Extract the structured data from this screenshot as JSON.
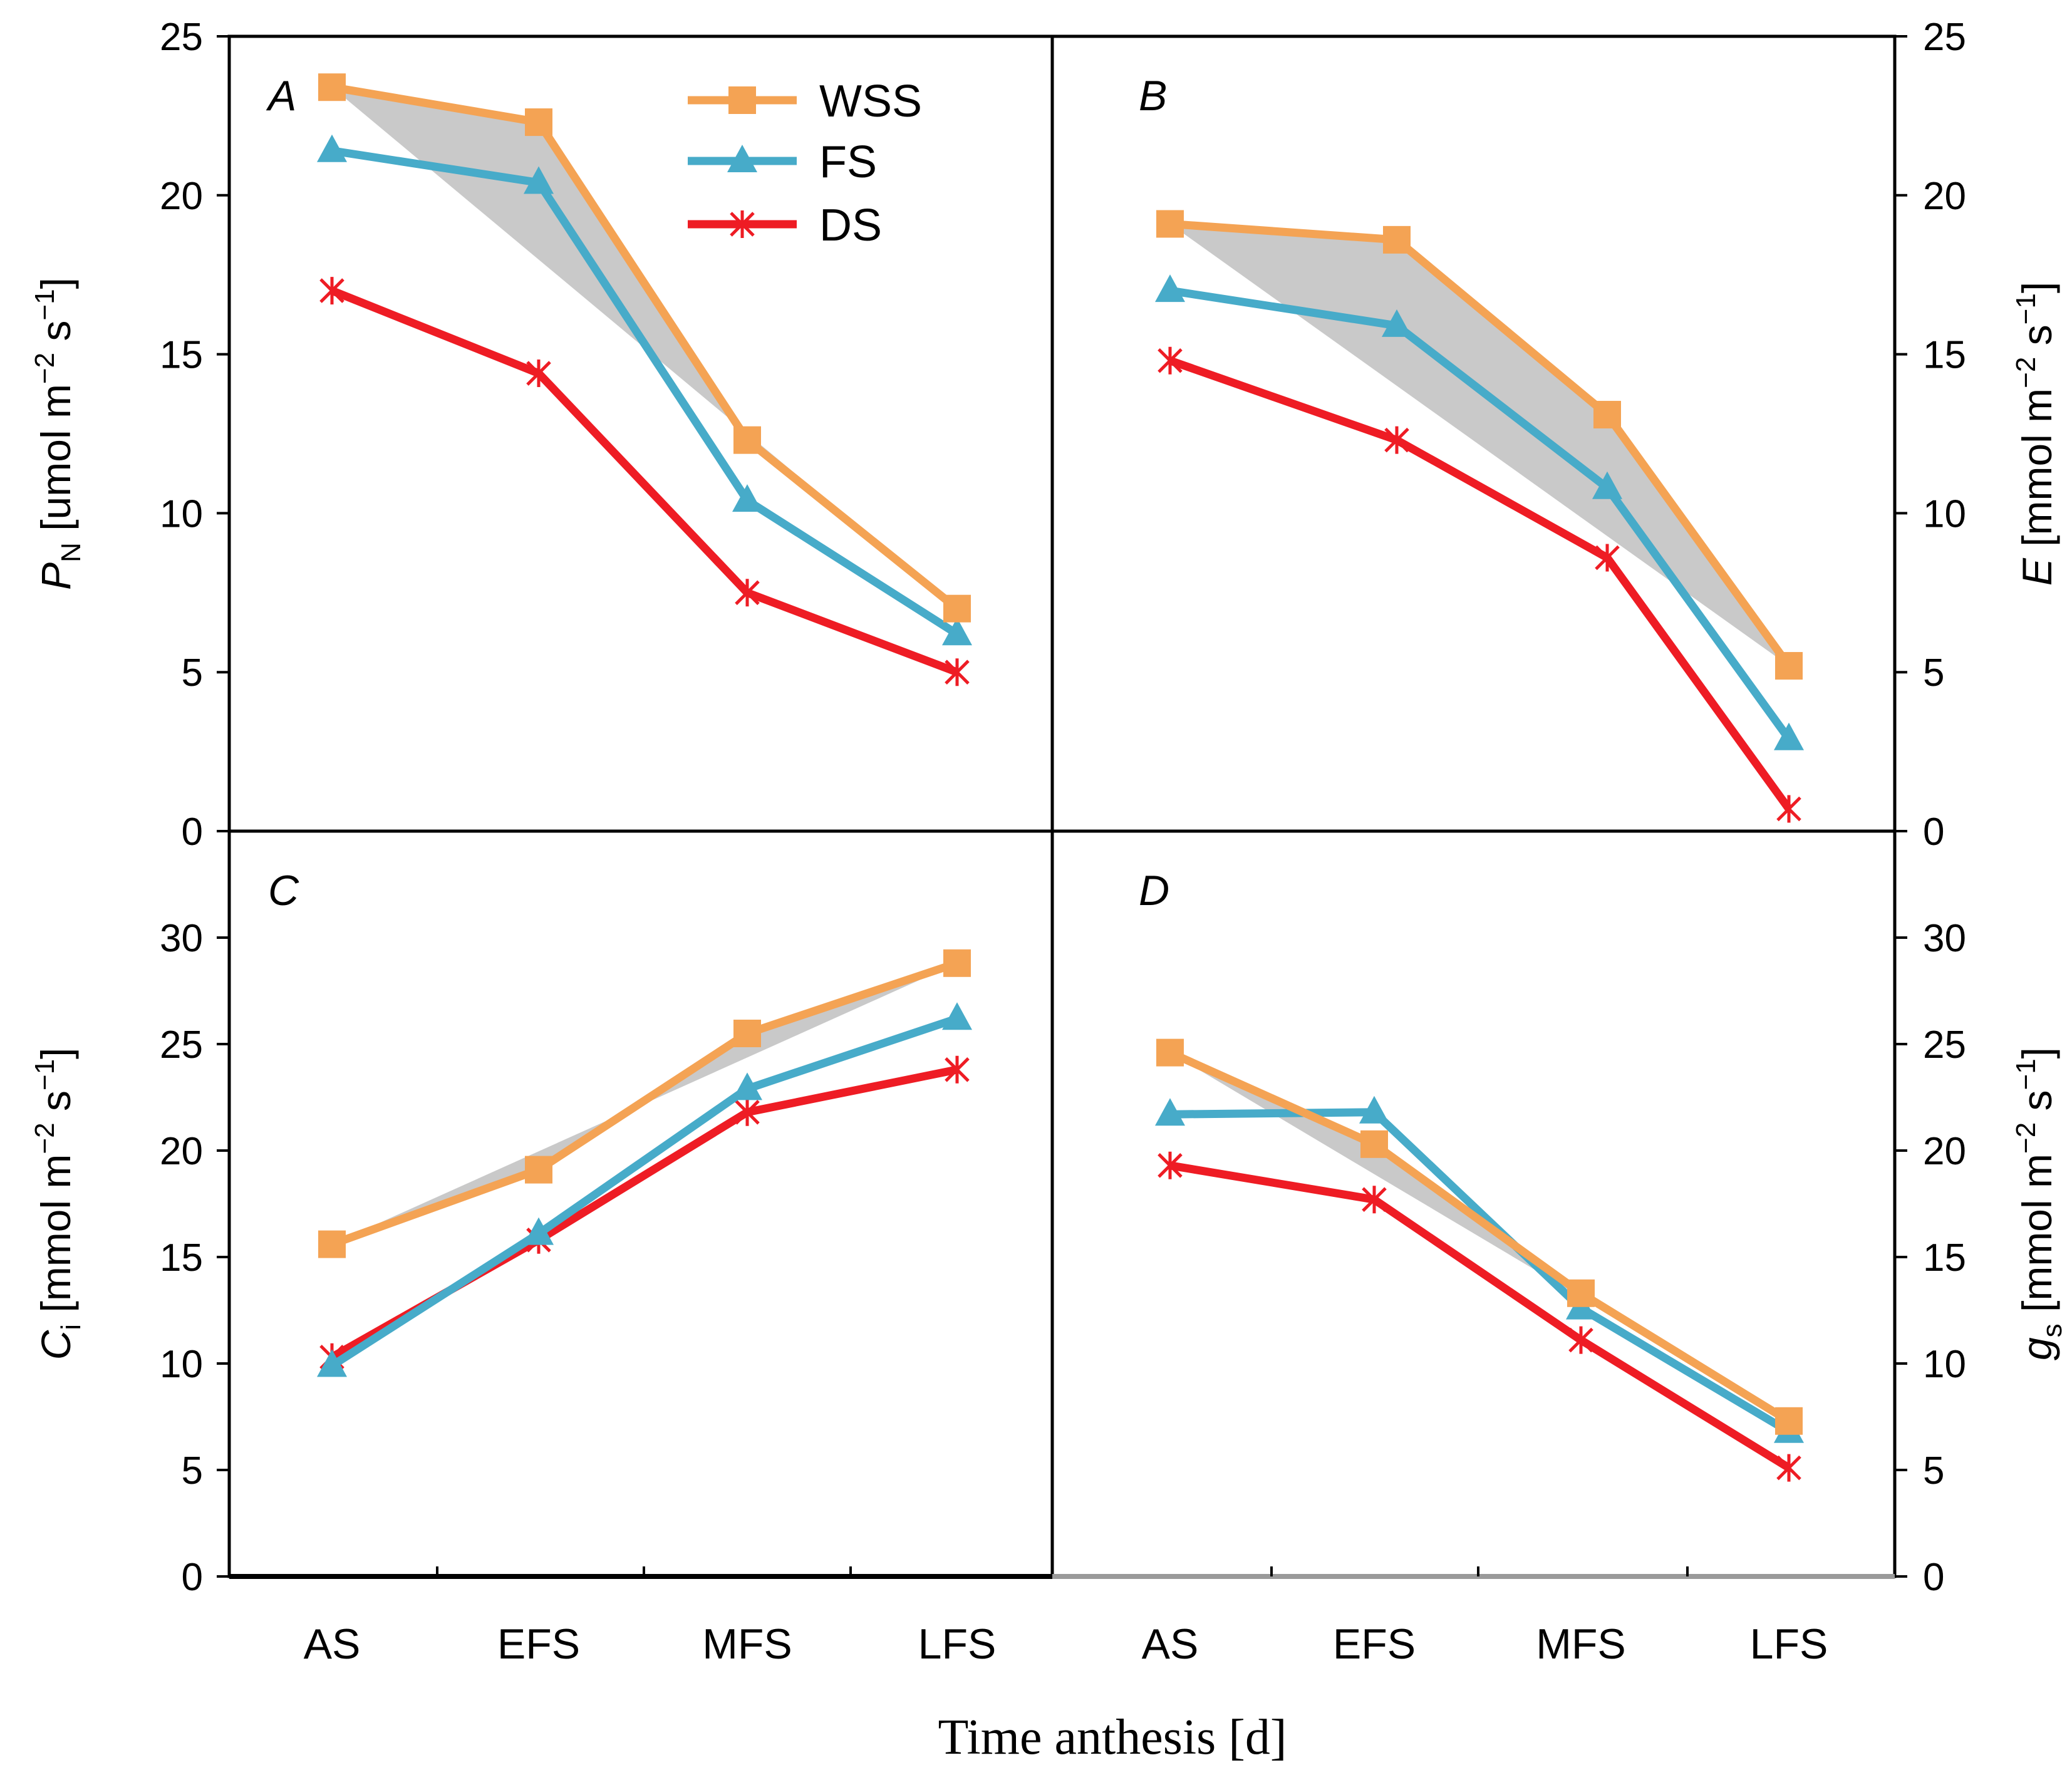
{
  "figure": {
    "x_title": "Time anthesis [d]",
    "categories": [
      "AS",
      "EFS",
      "MFS",
      "LFS"
    ],
    "legend": [
      {
        "name": "WSS",
        "marker": "square"
      },
      {
        "name": "FS",
        "marker": "triangle"
      },
      {
        "name": "DS",
        "marker": "star"
      }
    ],
    "colors": {
      "WSS": "#f4a354",
      "FS": "#47abc9",
      "DS": "#ee1c24",
      "band": "#c9c9c9",
      "frame": "#000000"
    }
  },
  "chart_data": [
    {
      "panel": "A",
      "type": "line",
      "categories": [
        "AS",
        "EFS",
        "MFS",
        "LFS"
      ],
      "ylabel": "P_N [umol m^-2 s^-1]",
      "ylabel_parts": {
        "symbol": "P",
        "sub": "N",
        "pre": "[umol m",
        "exp1": "−2",
        "mid": " s",
        "exp2": "−1",
        "post": "]"
      },
      "ylim": [
        0,
        25
      ],
      "yticks": [
        "0",
        "5",
        "10",
        "15",
        "20",
        "25"
      ],
      "axis_side": "left",
      "series": [
        {
          "name": "WSS",
          "values": [
            23.4,
            22.3,
            12.3,
            7.0
          ]
        },
        {
          "name": "FS",
          "values": [
            21.4,
            20.4,
            10.4,
            6.2
          ]
        },
        {
          "name": "DS",
          "values": [
            17.0,
            14.4,
            7.5,
            5.0
          ]
        }
      ]
    },
    {
      "panel": "B",
      "type": "line",
      "categories": [
        "AS",
        "EFS",
        "MFS",
        "LFS"
      ],
      "ylabel": "E [mmol m^-2 s^-1]",
      "ylabel_parts": {
        "symbol": "E",
        "sub": "",
        "pre": "[mmol m",
        "exp1": "−2",
        "mid": " s",
        "exp2": "−1",
        "post": "]"
      },
      "ylim": [
        0,
        25
      ],
      "yticks": [
        "0",
        "5",
        "10",
        "15",
        "20",
        "25"
      ],
      "axis_side": "right",
      "series": [
        {
          "name": "WSS",
          "values": [
            19.1,
            18.6,
            13.1,
            5.2
          ]
        },
        {
          "name": "FS",
          "values": [
            17.0,
            15.9,
            10.8,
            2.9
          ]
        },
        {
          "name": "DS",
          "values": [
            14.8,
            12.3,
            8.6,
            0.7
          ]
        }
      ]
    },
    {
      "panel": "C",
      "type": "line",
      "categories": [
        "AS",
        "EFS",
        "MFS",
        "LFS"
      ],
      "ylabel": "C_i [mmol m^-2 s^-1]",
      "ylabel_parts": {
        "symbol": "C",
        "sub": "i",
        "pre": "[mmol m",
        "exp1": "−2",
        "mid": " s",
        "exp2": "−1",
        "post": "]"
      },
      "ylim": [
        0,
        35
      ],
      "yticks": [
        "0",
        "5",
        "10",
        "15",
        "20",
        "25",
        "30"
      ],
      "axis_side": "left",
      "series": [
        {
          "name": "WSS",
          "values": [
            15.6,
            19.1,
            25.5,
            28.8
          ]
        },
        {
          "name": "FS",
          "values": [
            9.9,
            16.1,
            22.9,
            26.2
          ]
        },
        {
          "name": "DS",
          "values": [
            10.3,
            15.8,
            21.8,
            23.8
          ]
        }
      ]
    },
    {
      "panel": "D",
      "type": "line",
      "categories": [
        "AS",
        "EFS",
        "MFS",
        "LFS"
      ],
      "ylabel": "g_s [mmol m^-2 s^-1]",
      "ylabel_parts": {
        "symbol": "g",
        "sub": "s",
        "pre": "[mmol m",
        "exp1": "−2",
        "mid": " s",
        "exp2": "−1",
        "post": "]"
      },
      "ylim": [
        0,
        35
      ],
      "yticks": [
        "0",
        "5",
        "10",
        "15",
        "20",
        "25",
        "30"
      ],
      "axis_side": "right",
      "series": [
        {
          "name": "WSS",
          "values": [
            24.6,
            20.3,
            13.3,
            7.3
          ]
        },
        {
          "name": "FS",
          "values": [
            21.7,
            21.8,
            12.6,
            6.8
          ]
        },
        {
          "name": "DS",
          "values": [
            19.3,
            17.7,
            11.1,
            5.1
          ]
        }
      ]
    }
  ]
}
